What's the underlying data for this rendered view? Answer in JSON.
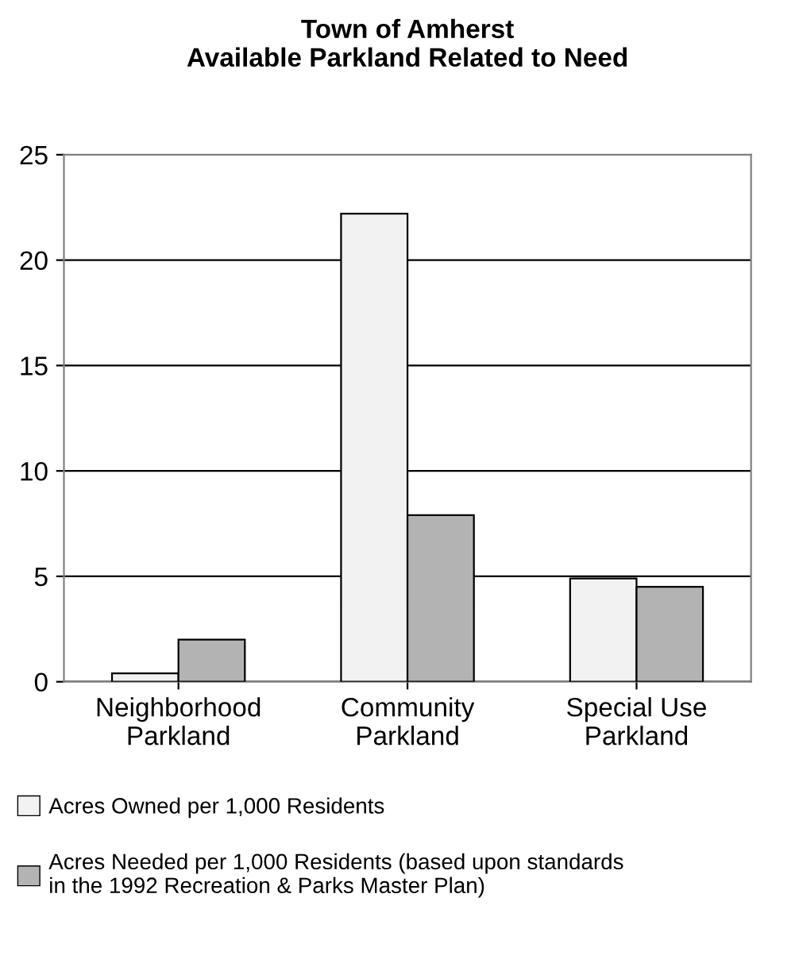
{
  "chart_data": {
    "type": "bar",
    "title": "Town of Amherst\nAvailable Parkland Related to Need",
    "categories": [
      "Neighborhood\nParkland",
      "Community\nParkland",
      "Special Use\nParkland"
    ],
    "series": [
      {
        "name": "Acres Owned per 1,000 Residents",
        "color": "#f2f2f2",
        "values": [
          0.4,
          22.2,
          4.9
        ]
      },
      {
        "name": "Acres Needed per 1,000 Residents (based upon standards\nin the 1992 Recreation & Parks Master Plan)",
        "color": "#b3b3b3",
        "values": [
          2.0,
          7.9,
          4.5
        ]
      }
    ],
    "ylim": [
      0,
      25
    ],
    "yticks": [
      0,
      5,
      10,
      15,
      20,
      25
    ],
    "grid": "y",
    "legend": "bottom"
  }
}
